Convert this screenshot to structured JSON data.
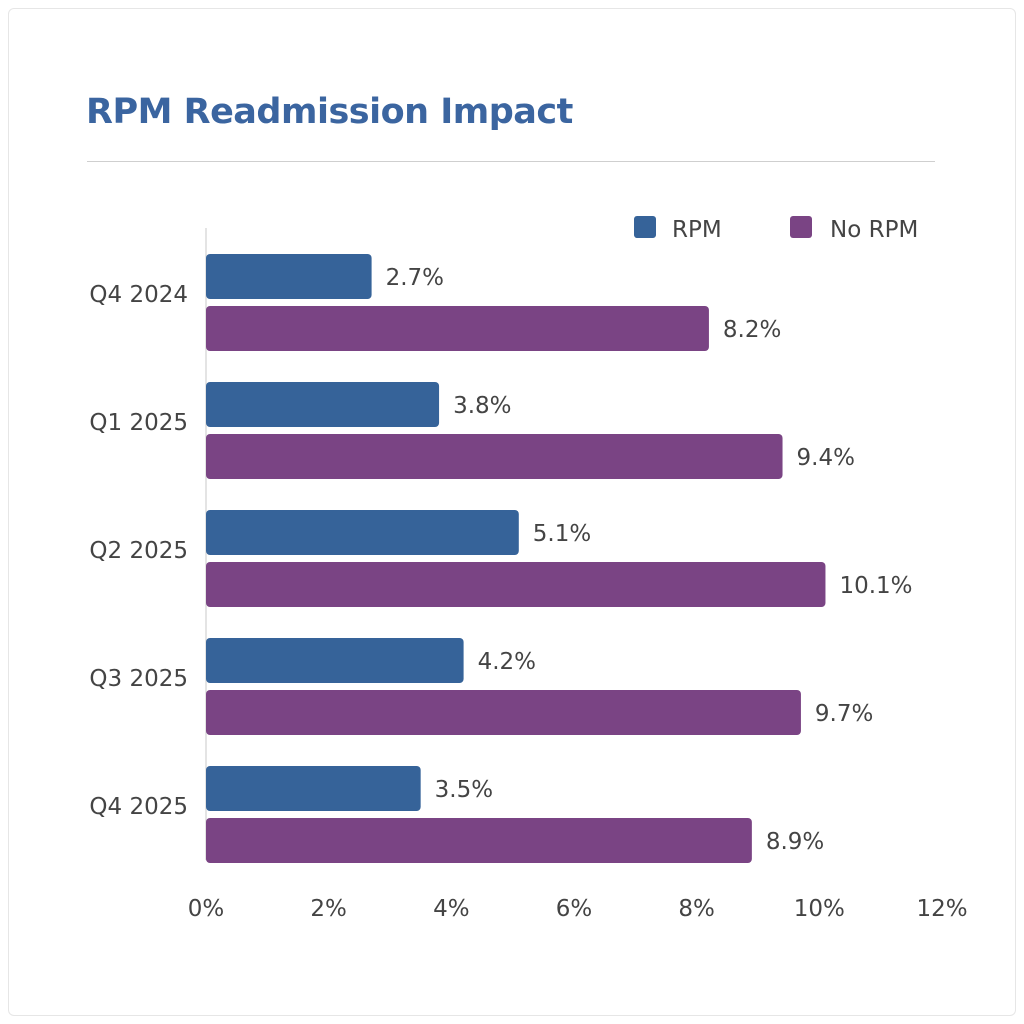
{
  "title": "RPM Readmission Impact",
  "chart_data": {
    "type": "bar",
    "orientation": "horizontal",
    "title": "RPM Readmission Impact",
    "categories": [
      "Q4 2024",
      "Q1 2025",
      "Q2 2025",
      "Q3 2025",
      "Q4 2025"
    ],
    "series": [
      {
        "name": "RPM",
        "color": "#366399",
        "values": [
          2.7,
          3.8,
          5.1,
          4.2,
          3.5
        ],
        "labels": [
          "2.7%",
          "3.8%",
          "5.1%",
          "4.2%",
          "3.5%"
        ]
      },
      {
        "name": "No RPM",
        "color": "#7a4484",
        "values": [
          8.2,
          9.4,
          10.1,
          9.7,
          8.9
        ],
        "labels": [
          "8.2%",
          "9.4%",
          "10.1%",
          "9.7%",
          "8.9%"
        ]
      }
    ],
    "xlim": [
      0,
      12
    ],
    "xticks": [
      "0%",
      "2%",
      "4%",
      "6%",
      "8%",
      "10%",
      "12%"
    ],
    "xlabel": "",
    "ylabel": "",
    "grid": false,
    "legend": "top-right"
  }
}
